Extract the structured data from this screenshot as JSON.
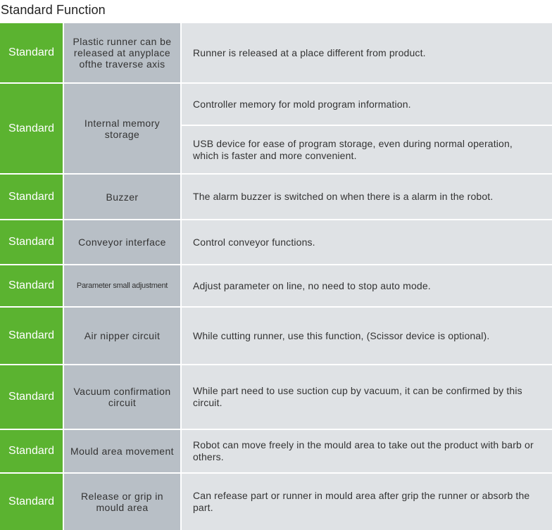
{
  "title": "Standard  Function",
  "rows": [
    {
      "badge": "Standard",
      "feature": "Plastic runner can be released at anyplace ofthe traverse axis",
      "descriptions": [
        "Runner is released at a place different from product."
      ]
    },
    {
      "badge": "Standard",
      "feature": "Internal memory storage",
      "descriptions": [
        "Controller memory for mold program information.",
        "USB device for ease of program storage, even during normal operation, which is faster and more convenient."
      ]
    },
    {
      "badge": "Standard",
      "feature": "Buzzer",
      "descriptions": [
        "The alarm buzzer is switched on when there is a alarm in the robot."
      ]
    },
    {
      "badge": "Standard",
      "feature": "Conveyor  interface",
      "descriptions": [
        "Control  conveyor  functions."
      ]
    },
    {
      "badge": "Standard",
      "feature": "Parameter small adjustment",
      "descriptions": [
        "Adjust parameter on line, no need to stop auto mode."
      ]
    },
    {
      "badge": "Standard",
      "feature": "Air nipper circuit",
      "descriptions": [
        "While cutting runner, use this function, (Scissor device is optional)."
      ]
    },
    {
      "badge": "Standard",
      "feature": "Vacuum confirmation circuit",
      "descriptions": [
        "While part need to use suction cup by vacuum, it can be confirmed by this circuit."
      ]
    },
    {
      "badge": "Standard",
      "feature": "Mould area movement",
      "descriptions": [
        "Robot can move freely in the mould area to take out the product with barb or others."
      ]
    },
    {
      "badge": "Standard",
      "feature": "Release or grip in mould area",
      "descriptions": [
        "Can refease part or runner in mould area after grip the runner or absorb the part."
      ]
    }
  ],
  "colors": {
    "badge": "#5bb330",
    "feature": "#b8bfc6",
    "description": "#dfe2e5"
  }
}
